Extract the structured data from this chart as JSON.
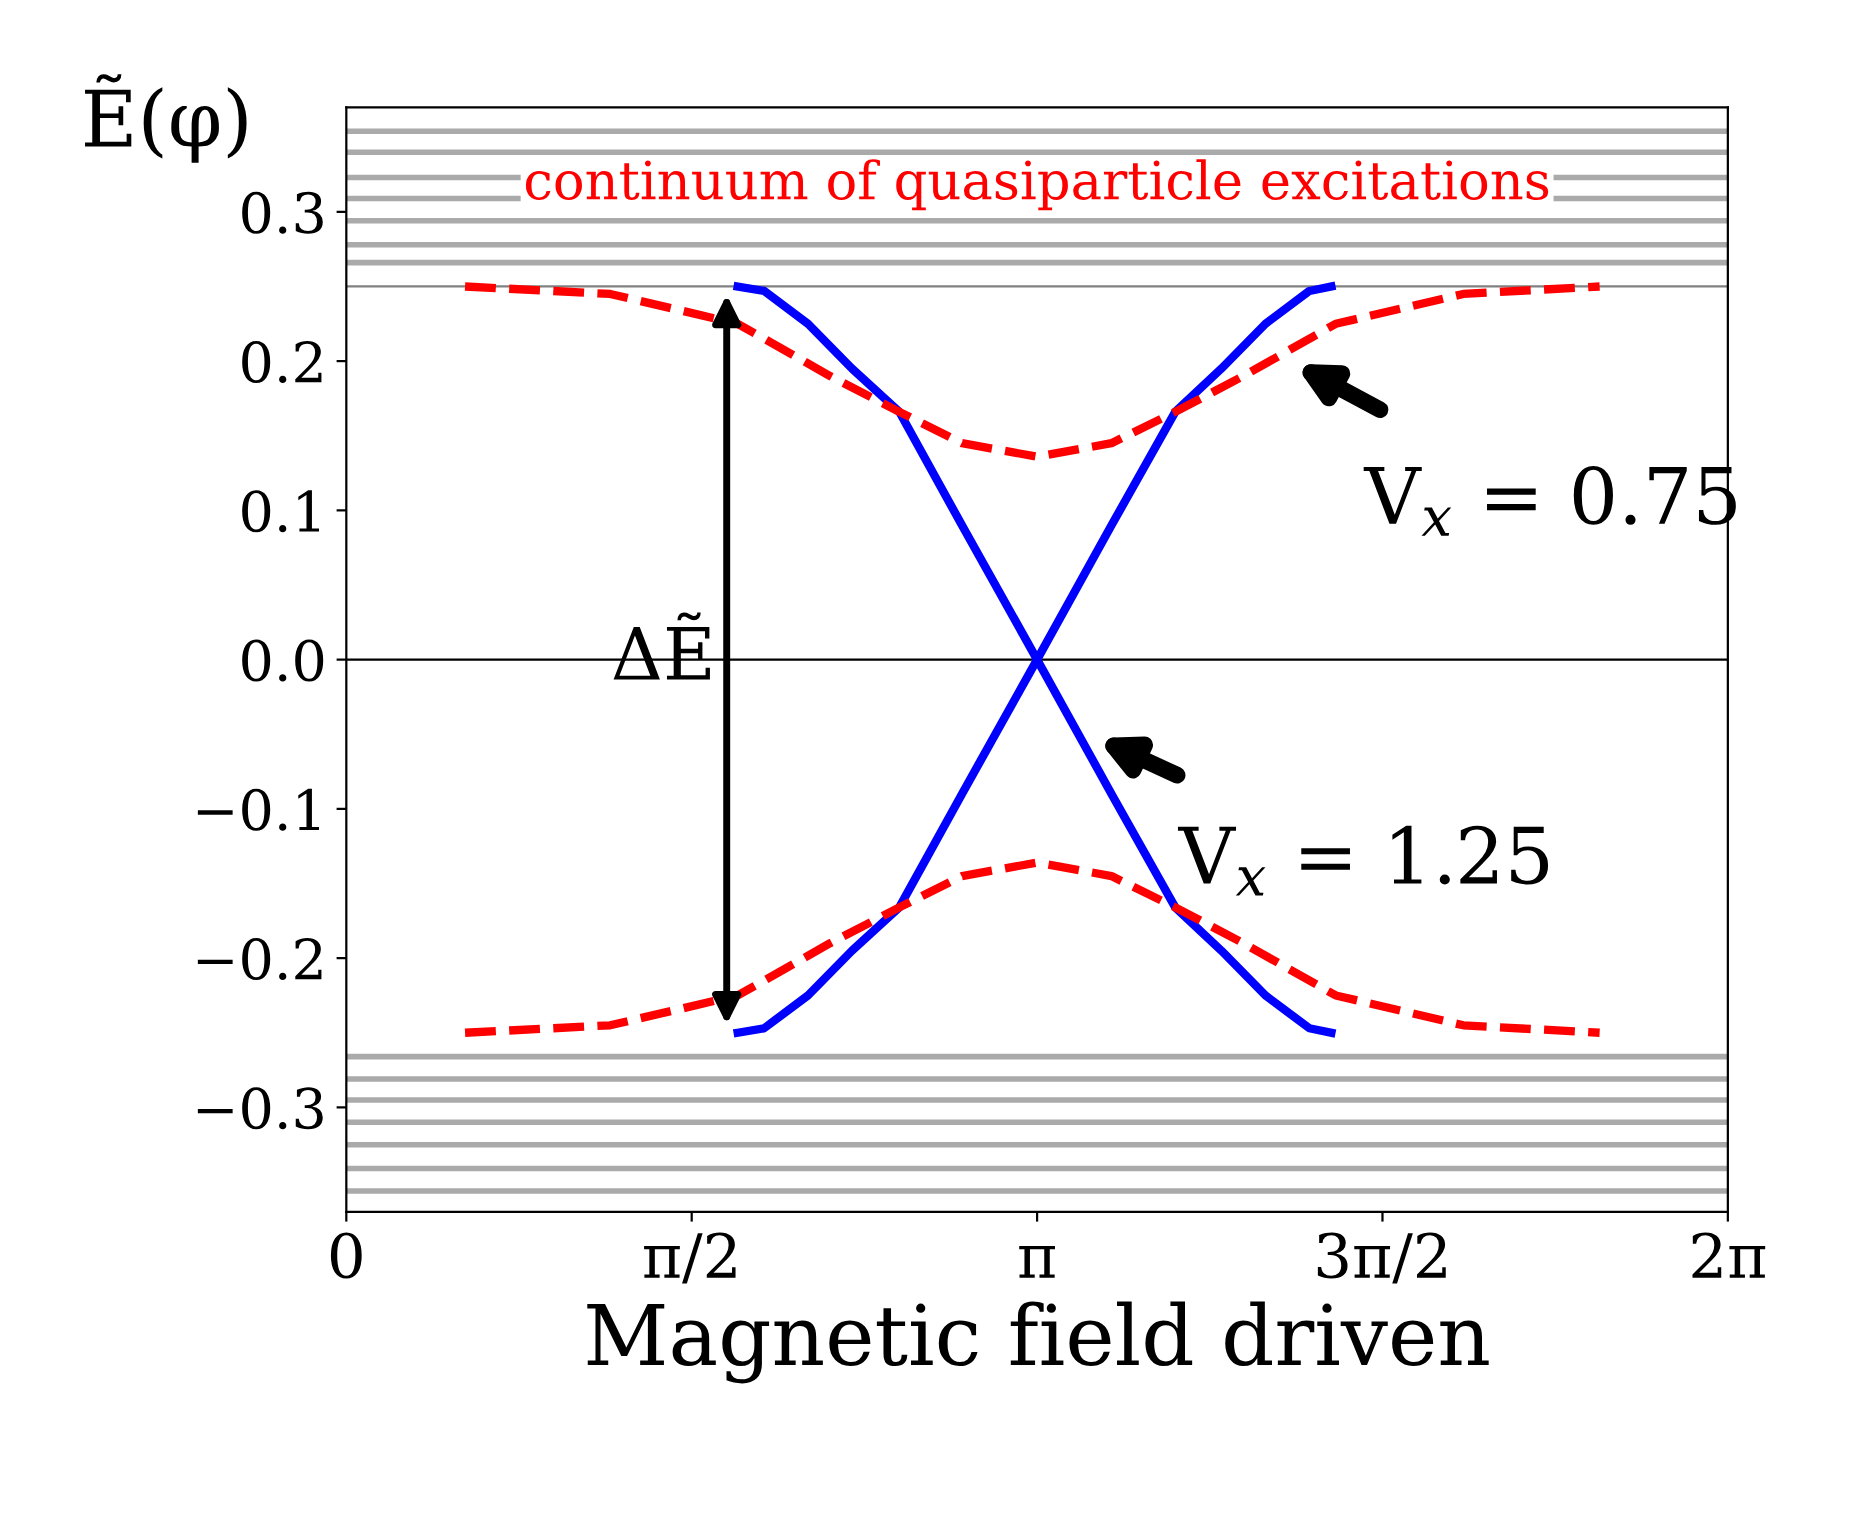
{
  "chart_data": {
    "type": "line",
    "ylabel": "Ẽ(φ)",
    "xlabel": "Magnetic field driven",
    "xlim": [
      0,
      6.2832
    ],
    "ylim": [
      -0.37,
      0.37
    ],
    "xticks": [
      {
        "value": 0,
        "label": "0"
      },
      {
        "value": 1.5708,
        "label": "π/2"
      },
      {
        "value": 3.1416,
        "label": "π"
      },
      {
        "value": 4.7124,
        "label": "3π/2"
      },
      {
        "value": 6.2832,
        "label": "2π"
      }
    ],
    "yticks": [
      {
        "value": -0.3,
        "label": "−0.3"
      },
      {
        "value": -0.2,
        "label": "−0.2"
      },
      {
        "value": -0.1,
        "label": "−0.1"
      },
      {
        "value": 0,
        "label": "0.0"
      },
      0.1,
      0.2,
      0.3
    ],
    "grid": false,
    "legend": false,
    "series": [
      {
        "color": "#0000ff",
        "line_style": "solid",
        "x": [
          1.78,
          1.9,
          2.1,
          2.3,
          2.515,
          2.8,
          3.1416,
          3.48,
          3.77,
          3.98,
          4.18,
          4.38,
          4.48
        ],
        "values": [
          0.25,
          0.247,
          0.225,
          0.195,
          0.166,
          0.09,
          0.0,
          -0.09,
          -0.166,
          -0.195,
          -0.225,
          -0.247,
          -0.25
        ]
      },
      {
        "color": "#0000ff",
        "line_style": "solid",
        "x": [
          1.78,
          1.9,
          2.1,
          2.3,
          2.515,
          2.8,
          3.1416,
          3.48,
          3.77,
          3.98,
          4.18,
          4.38,
          4.48
        ],
        "values": [
          -0.25,
          -0.247,
          -0.225,
          -0.195,
          -0.166,
          -0.09,
          0.0,
          0.09,
          0.166,
          0.195,
          0.225,
          0.247,
          0.25
        ]
      },
      {
        "color": "#ff0000",
        "line_style": "dashed",
        "x": [
          0.54,
          1.2,
          1.78,
          2.2,
          2.515,
          2.8,
          3.1416,
          3.48,
          3.77,
          4.08,
          4.5,
          5.08,
          5.7
        ],
        "values": [
          0.25,
          0.245,
          0.225,
          0.19,
          0.166,
          0.145,
          0.136,
          0.145,
          0.166,
          0.19,
          0.225,
          0.245,
          0.25
        ]
      },
      {
        "color": "#ff0000",
        "line_style": "dashed",
        "x": [
          0.54,
          1.2,
          1.78,
          2.2,
          2.515,
          2.8,
          3.1416,
          3.48,
          3.77,
          4.08,
          4.5,
          5.08,
          5.7
        ],
        "values": [
          -0.25,
          -0.245,
          -0.225,
          -0.19,
          -0.166,
          -0.145,
          -0.136,
          -0.145,
          -0.166,
          -0.19,
          -0.225,
          -0.245,
          -0.25
        ]
      }
    ],
    "ref_lines": [
      {
        "axis": "y",
        "value": 0.0,
        "color": "#000000"
      },
      {
        "axis": "y",
        "value": 0.25,
        "color": "#808080"
      },
      {
        "axis": "y",
        "value": 0.266,
        "color": "#aaaaaa"
      },
      {
        "axis": "y",
        "value": 0.278,
        "color": "#aaaaaa"
      },
      {
        "axis": "y",
        "value": 0.294,
        "color": "#aaaaaa"
      },
      {
        "axis": "y",
        "value": 0.309,
        "color": "#aaaaaa"
      },
      {
        "axis": "y",
        "value": 0.323,
        "color": "#aaaaaa"
      },
      {
        "axis": "y",
        "value": 0.34,
        "color": "#aaaaaa"
      },
      {
        "axis": "y",
        "value": 0.354,
        "color": "#aaaaaa"
      },
      {
        "axis": "y",
        "value": -0.266,
        "color": "#aaaaaa"
      },
      {
        "axis": "y",
        "value": -0.281,
        "color": "#aaaaaa"
      },
      {
        "axis": "y",
        "value": -0.295,
        "color": "#aaaaaa"
      },
      {
        "axis": "y",
        "value": -0.31,
        "color": "#aaaaaa"
      },
      {
        "axis": "y",
        "value": -0.325,
        "color": "#aaaaaa"
      },
      {
        "axis": "y",
        "value": -0.341,
        "color": "#aaaaaa"
      },
      {
        "axis": "y",
        "value": -0.356,
        "color": "#aaaaaa"
      }
    ],
    "annotations": [
      "continuum of quasiparticle excitations",
      {
        "text": "ΔẼ",
        "x": 1.73,
        "y": 0
      },
      {
        "text": "V$_{x}$ = 0.75",
        "x": 4.29,
        "y": 0.2
      },
      {
        "text": "V$_{x}$ = 1.25",
        "x": 3.39,
        "y": -0.051
      }
    ]
  }
}
